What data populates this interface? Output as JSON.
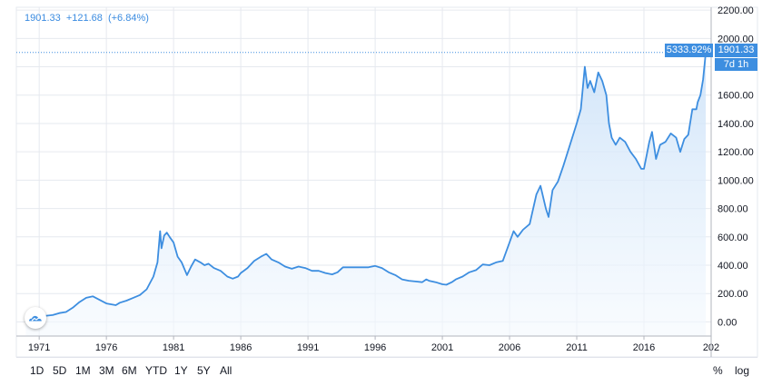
{
  "legend": {
    "price": "1901.33",
    "change": "+121.68",
    "change_pct": "(+6.84%)"
  },
  "price_tag": "1901.33",
  "pct_tag": "5333.92%",
  "countdown_tag": "7d 1h",
  "colors": {
    "line": "#3d8ee0",
    "fill_top": "#c9e0f8",
    "fill_bottom": "#f4f9fe",
    "grid": "#e6e9ef",
    "axis_text": "#131722"
  },
  "toolbar": {
    "ranges": [
      "1D",
      "5D",
      "1M",
      "3M",
      "6M",
      "YTD",
      "1Y",
      "5Y",
      "All"
    ],
    "pct_label": "%",
    "log_label": "log"
  },
  "logo_icon": "tradingview-cloud-icon",
  "chart_data": {
    "type": "area",
    "title": "",
    "xlabel": "",
    "ylabel": "",
    "x_ticks": [
      "1971",
      "1976",
      "1981",
      "1986",
      "1991",
      "1996",
      "2001",
      "2006",
      "2011",
      "2016",
      "202"
    ],
    "y_ticks": [
      "0.00",
      "200.00",
      "400.00",
      "600.00",
      "800.00",
      "1000.00",
      "1200.00",
      "1400.00",
      "1600.00",
      "1800.00",
      "2000.00",
      "2200.00"
    ],
    "ylim": [
      -100,
      2220
    ],
    "xlim": [
      1969.3,
      2021.0
    ],
    "grid": true,
    "series": [
      {
        "x": [
          1970.0,
          1971.0,
          1972.0,
          1972.5,
          1973.0,
          1973.5,
          1974.0,
          1974.5,
          1975.0,
          1975.5,
          1976.0,
          1976.7,
          1977.0,
          1977.5,
          1978.0,
          1978.5,
          1979.0,
          1979.5,
          1979.8,
          1980.0,
          1980.1,
          1980.3,
          1980.5,
          1980.7,
          1981.0,
          1981.3,
          1981.6,
          1982.0,
          1982.3,
          1982.6,
          1983.0,
          1983.3,
          1983.6,
          1984.0,
          1984.5,
          1985.0,
          1985.4,
          1985.8,
          1986.0,
          1986.5,
          1987.0,
          1987.5,
          1987.9,
          1988.3,
          1988.8,
          1989.3,
          1989.8,
          1990.3,
          1990.8,
          1991.3,
          1991.8,
          1992.3,
          1992.8,
          1993.2,
          1993.6,
          1994.0,
          1994.5,
          1995.0,
          1995.5,
          1996.0,
          1996.5,
          1997.0,
          1997.5,
          1998.0,
          1998.5,
          1999.0,
          1999.5,
          1999.8,
          2000.0,
          2000.5,
          2001.0,
          2001.3,
          2001.7,
          2002.0,
          2002.5,
          2003.0,
          2003.5,
          2004.0,
          2004.5,
          2005.0,
          2005.5,
          2006.0,
          2006.3,
          2006.6,
          2007.0,
          2007.5,
          2008.0,
          2008.3,
          2008.7,
          2008.9,
          2009.2,
          2009.6,
          2010.0,
          2010.5,
          2011.0,
          2011.3,
          2011.6,
          2011.8,
          2012.0,
          2012.3,
          2012.6,
          2012.9,
          2013.2,
          2013.4,
          2013.6,
          2013.9,
          2014.2,
          2014.6,
          2015.0,
          2015.4,
          2015.8,
          2016.0,
          2016.4,
          2016.6,
          2016.9,
          2017.2,
          2017.6,
          2018.0,
          2018.4,
          2018.7,
          2019.0,
          2019.3,
          2019.6,
          2019.9,
          2020.0,
          2020.2,
          2020.4,
          2020.6
        ],
        "y": [
          35,
          38,
          48,
          62,
          70,
          100,
          140,
          170,
          180,
          155,
          130,
          118,
          135,
          150,
          170,
          190,
          230,
          320,
          420,
          640,
          520,
          610,
          630,
          600,
          560,
          460,
          420,
          330,
          390,
          440,
          420,
          400,
          410,
          380,
          360,
          320,
          305,
          320,
          345,
          380,
          430,
          460,
          480,
          440,
          420,
          390,
          375,
          390,
          380,
          360,
          360,
          345,
          335,
          350,
          385,
          385,
          385,
          385,
          385,
          395,
          380,
          350,
          330,
          300,
          290,
          285,
          280,
          300,
          290,
          280,
          265,
          262,
          280,
          300,
          320,
          350,
          365,
          405,
          400,
          420,
          430,
          560,
          640,
          600,
          650,
          690,
          900,
          960,
          800,
          740,
          930,
          990,
          1100,
          1250,
          1400,
          1500,
          1800,
          1650,
          1700,
          1620,
          1760,
          1700,
          1600,
          1400,
          1300,
          1250,
          1300,
          1270,
          1200,
          1150,
          1080,
          1080,
          1270,
          1340,
          1150,
          1250,
          1270,
          1330,
          1300,
          1200,
          1290,
          1320,
          1500,
          1500,
          1550,
          1600,
          1710,
          1901.33
        ]
      }
    ],
    "last_value": 1901.33,
    "last_change": 121.68,
    "last_change_pct": 6.84,
    "total_change_pct": 5333.92
  }
}
